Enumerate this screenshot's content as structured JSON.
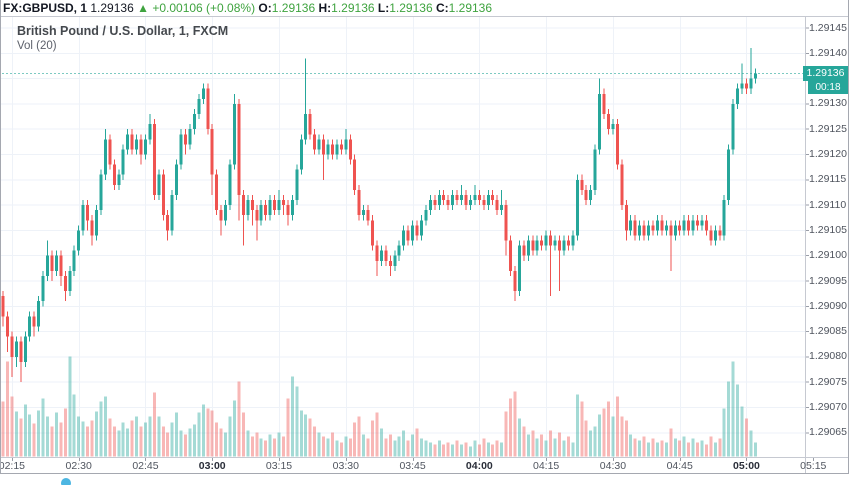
{
  "header": {
    "symbol": "FX:GBPUSD, 1",
    "last_price": "1.29136",
    "arrow": "▲",
    "change": "+0.00106 (+0.08%)",
    "o_label": "O:",
    "o_value": "1.29136",
    "h_label": "H:",
    "h_value": "1.29136",
    "l_label": "L:",
    "l_value": "1.29136",
    "c_label": "C:",
    "c_value": "1.29136"
  },
  "legend": {
    "title": "British Pound / U.S. Dollar, 1, FXCM",
    "indicator": "Vol (20)"
  },
  "price_axis": {
    "labels": [
      "1.29145",
      "1.29140",
      "1.29130",
      "1.29125",
      "1.29120",
      "1.29115",
      "1.29110",
      "1.29105",
      "1.29100",
      "1.29095",
      "1.29090",
      "1.29085",
      "1.29080",
      "1.29075",
      "1.29070",
      "1.29065"
    ],
    "badge_price": "1.29136",
    "countdown": "00:18"
  },
  "time_axis": {
    "labels": [
      {
        "text": "02:15",
        "m": 2,
        "bold": false
      },
      {
        "text": "02:30",
        "m": 17,
        "bold": false
      },
      {
        "text": "02:45",
        "m": 32,
        "bold": false
      },
      {
        "text": "03:00",
        "m": 47,
        "bold": true
      },
      {
        "text": "03:15",
        "m": 62,
        "bold": false
      },
      {
        "text": "03:30",
        "m": 77,
        "bold": false
      },
      {
        "text": "03:45",
        "m": 92,
        "bold": false
      },
      {
        "text": "04:00",
        "m": 107,
        "bold": true
      },
      {
        "text": "04:15",
        "m": 122,
        "bold": false
      },
      {
        "text": "04:30",
        "m": 137,
        "bold": false
      },
      {
        "text": "04:45",
        "m": 152,
        "bold": false
      },
      {
        "text": "05:00",
        "m": 167,
        "bold": true
      },
      {
        "text": "05:15",
        "m": 182,
        "bold": false
      }
    ]
  },
  "colors": {
    "up": "#26a69a",
    "down": "#ef5350",
    "up_volume": "rgba(38,166,154,0.42)",
    "down_volume": "rgba(239,83,80,0.42)",
    "green_text": "#3fa33f",
    "badge_bg": "#26a69a",
    "grid": "#eef2f8",
    "frame": "#c6c9d1",
    "dot_blue": "#4db6e2",
    "dashed_price_line": "rgba(38,166,154,0.6)"
  },
  "chart_data": {
    "type": "candlestick",
    "title": "British Pound / U.S. Dollar, 1, FXCM",
    "symbol": "GBPUSD",
    "interval_minutes": 1,
    "exchange": "FXCM",
    "indicator": "Vol (20)",
    "start_time": "02:13",
    "end_time": "05:02",
    "price_axis_range": [
      1.29062,
      1.29148
    ],
    "grid": true,
    "legend_position": "top-left",
    "current_price": 1.29136,
    "price_base": 1.29,
    "price_scale": 1e-05,
    "candle_format": [
      "open",
      "high",
      "low",
      "close",
      "volume_rel"
    ],
    "candles": [
      [
        92,
        93,
        86,
        88,
        55
      ],
      [
        88,
        89,
        81,
        84,
        95
      ],
      [
        84,
        85,
        76,
        80,
        60
      ],
      [
        80,
        84,
        78,
        83,
        45
      ],
      [
        83,
        84,
        75,
        79,
        38
      ],
      [
        79,
        85,
        78,
        84,
        52
      ],
      [
        84,
        89,
        83,
        88,
        42
      ],
      [
        88,
        89,
        84,
        86,
        33
      ],
      [
        86,
        92,
        85,
        91,
        46
      ],
      [
        91,
        97,
        90,
        96,
        58
      ],
      [
        96,
        103,
        95,
        100,
        40
      ],
      [
        100,
        101,
        95,
        97,
        30
      ],
      [
        97,
        101,
        96,
        100,
        44
      ],
      [
        100,
        101,
        94,
        96,
        34
      ],
      [
        96,
        97,
        91,
        93,
        48
      ],
      [
        93,
        98,
        92,
        97,
        100
      ],
      [
        97,
        102,
        96,
        101,
        62
      ],
      [
        101,
        106,
        100,
        105,
        40
      ],
      [
        105,
        111,
        104,
        110,
        35
      ],
      [
        110,
        111,
        105,
        107,
        30
      ],
      [
        107,
        108,
        102,
        104,
        36
      ],
      [
        104,
        110,
        103,
        109,
        45
      ],
      [
        109,
        117,
        108,
        116,
        55
      ],
      [
        116,
        125,
        115,
        123,
        60
      ],
      [
        123,
        124,
        117,
        118,
        38
      ],
      [
        118,
        119,
        113,
        114,
        30
      ],
      [
        114,
        117,
        113,
        116,
        26
      ],
      [
        116,
        122,
        115,
        121,
        34
      ],
      [
        121,
        125,
        120,
        124,
        28
      ],
      [
        124,
        125,
        120,
        121,
        36
      ],
      [
        121,
        124,
        120,
        123,
        40
      ],
      [
        123,
        124,
        118,
        120,
        30
      ],
      [
        120,
        124,
        119,
        123,
        34
      ],
      [
        123,
        128,
        122,
        126,
        40
      ],
      [
        126,
        127,
        111,
        112,
        64
      ],
      [
        112,
        117,
        111,
        116,
        40
      ],
      [
        116,
        117,
        107,
        108,
        30
      ],
      [
        108,
        109,
        103,
        105,
        24
      ],
      [
        105,
        113,
        104,
        112,
        34
      ],
      [
        112,
        119,
        111,
        118,
        44
      ],
      [
        118,
        125,
        117,
        124,
        26
      ],
      [
        124,
        125,
        120,
        122,
        22
      ],
      [
        122,
        126,
        121,
        125,
        28
      ],
      [
        125,
        129,
        124,
        128,
        32
      ],
      [
        128,
        132,
        127,
        131,
        44
      ],
      [
        131,
        134,
        130,
        133,
        52
      ],
      [
        133,
        134,
        124,
        125,
        48
      ],
      [
        125,
        126,
        112,
        116,
        46
      ],
      [
        116,
        117,
        108,
        109,
        34
      ],
      [
        109,
        110,
        104,
        107,
        28
      ],
      [
        107,
        111,
        106,
        110,
        24
      ],
      [
        110,
        119,
        109,
        118,
        40
      ],
      [
        118,
        132,
        117,
        130,
        56
      ],
      [
        130,
        131,
        107,
        112,
        75
      ],
      [
        112,
        113,
        102,
        108,
        44
      ],
      [
        108,
        112,
        107,
        111,
        26
      ],
      [
        111,
        112,
        106,
        109,
        20
      ],
      [
        109,
        110,
        103,
        107,
        24
      ],
      [
        107,
        111,
        106,
        110,
        18
      ],
      [
        110,
        111,
        107,
        108,
        16
      ],
      [
        108,
        112,
        107,
        111,
        22
      ],
      [
        111,
        112,
        108,
        109,
        18
      ],
      [
        109,
        113,
        108,
        111,
        24
      ],
      [
        111,
        112,
        108,
        110,
        20
      ],
      [
        110,
        111,
        106,
        108,
        58
      ],
      [
        108,
        112,
        107,
        111,
        80
      ],
      [
        111,
        118,
        110,
        117,
        70
      ],
      [
        117,
        124,
        116,
        123,
        46
      ],
      [
        123,
        139,
        122,
        128,
        42
      ],
      [
        128,
        129,
        123,
        124,
        38
      ],
      [
        124,
        125,
        120,
        121,
        30
      ],
      [
        121,
        124,
        120,
        123,
        24
      ],
      [
        123,
        124,
        115,
        120,
        20
      ],
      [
        120,
        123,
        119,
        122,
        18
      ],
      [
        122,
        123,
        119,
        120,
        24
      ],
      [
        120,
        123,
        119,
        122,
        16
      ],
      [
        122,
        123,
        120,
        121,
        14
      ],
      [
        121,
        125,
        120,
        123,
        20
      ],
      [
        123,
        124,
        118,
        119,
        18
      ],
      [
        119,
        120,
        112,
        113,
        34
      ],
      [
        113,
        114,
        107,
        108,
        40
      ],
      [
        108,
        110,
        107,
        109,
        22
      ],
      [
        109,
        110,
        106,
        107,
        18
      ],
      [
        107,
        108,
        101,
        102,
        36
      ],
      [
        102,
        103,
        96,
        99,
        44
      ],
      [
        99,
        102,
        98,
        101,
        28
      ],
      [
        101,
        102,
        98,
        99,
        18
      ],
      [
        99,
        100,
        96,
        98,
        22
      ],
      [
        98,
        101,
        97,
        100,
        16
      ],
      [
        100,
        103,
        99,
        102,
        20
      ],
      [
        102,
        106,
        101,
        105,
        26
      ],
      [
        105,
        106,
        102,
        103,
        16
      ],
      [
        103,
        107,
        102,
        106,
        22
      ],
      [
        106,
        107,
        103,
        104,
        28
      ],
      [
        104,
        108,
        103,
        107,
        18
      ],
      [
        107,
        110,
        106,
        109,
        16
      ],
      [
        109,
        112,
        108,
        111,
        14
      ],
      [
        111,
        112,
        109,
        110,
        12
      ],
      [
        110,
        113,
        109,
        112,
        16
      ],
      [
        112,
        113,
        110,
        111,
        12
      ],
      [
        111,
        112,
        109,
        110,
        14
      ],
      [
        110,
        113,
        109,
        112,
        12
      ],
      [
        112,
        113,
        110,
        111,
        16
      ],
      [
        111,
        114,
        110,
        112,
        12
      ],
      [
        112,
        113,
        109,
        110,
        14
      ],
      [
        110,
        112,
        109,
        111,
        10
      ],
      [
        111,
        114,
        110,
        112,
        16
      ],
      [
        112,
        113,
        110,
        111,
        12
      ],
      [
        111,
        112,
        109,
        110,
        18
      ],
      [
        110,
        113,
        109,
        112,
        14
      ],
      [
        112,
        113,
        110,
        111,
        12
      ],
      [
        111,
        112,
        108,
        109,
        16
      ],
      [
        109,
        113,
        108,
        110,
        14
      ],
      [
        110,
        111,
        100,
        103,
        45
      ],
      [
        103,
        104,
        96,
        97,
        58
      ],
      [
        97,
        98,
        91,
        93,
        65
      ],
      [
        93,
        103,
        92,
        102,
        38
      ],
      [
        102,
        103,
        99,
        100,
        30
      ],
      [
        100,
        104,
        99,
        103,
        22
      ],
      [
        103,
        104,
        100,
        101,
        26
      ],
      [
        101,
        104,
        100,
        103,
        18
      ],
      [
        103,
        104,
        101,
        102,
        22
      ],
      [
        102,
        105,
        101,
        104,
        16
      ],
      [
        104,
        105,
        92,
        102,
        26
      ],
      [
        102,
        104,
        101,
        103,
        18
      ],
      [
        103,
        104,
        93,
        101,
        24
      ],
      [
        101,
        104,
        100,
        103,
        16
      ],
      [
        103,
        104,
        101,
        102,
        20
      ],
      [
        102,
        105,
        101,
        104,
        14
      ],
      [
        104,
        116,
        103,
        115,
        62
      ],
      [
        115,
        116,
        112,
        113,
        55
      ],
      [
        113,
        114,
        110,
        111,
        36
      ],
      [
        111,
        114,
        110,
        113,
        26
      ],
      [
        113,
        122,
        112,
        121,
        30
      ],
      [
        121,
        135,
        120,
        132,
        42
      ],
      [
        132,
        133,
        127,
        128,
        48
      ],
      [
        128,
        129,
        124,
        125,
        55
      ],
      [
        125,
        127,
        124,
        126,
        40
      ],
      [
        126,
        127,
        117,
        118,
        60
      ],
      [
        118,
        119,
        109,
        110,
        40
      ],
      [
        110,
        111,
        103,
        105,
        36
      ],
      [
        105,
        108,
        104,
        107,
        22
      ],
      [
        107,
        108,
        103,
        104,
        18
      ],
      [
        104,
        107,
        103,
        106,
        16
      ],
      [
        106,
        107,
        103,
        104,
        20
      ],
      [
        104,
        107,
        103,
        106,
        14
      ],
      [
        106,
        107,
        104,
        105,
        18
      ],
      [
        105,
        108,
        104,
        107,
        14
      ],
      [
        107,
        108,
        104,
        105,
        16
      ],
      [
        105,
        107,
        104,
        106,
        14
      ],
      [
        106,
        107,
        97,
        104,
        28
      ],
      [
        104,
        107,
        103,
        106,
        18
      ],
      [
        106,
        107,
        104,
        105,
        16
      ],
      [
        105,
        108,
        104,
        107,
        20
      ],
      [
        107,
        108,
        104,
        105,
        14
      ],
      [
        105,
        108,
        104,
        107,
        18
      ],
      [
        107,
        108,
        105,
        106,
        14
      ],
      [
        106,
        108,
        105,
        107,
        16
      ],
      [
        107,
        108,
        104,
        105,
        12
      ],
      [
        105,
        106,
        102,
        103,
        20
      ],
      [
        103,
        106,
        102,
        105,
        14
      ],
      [
        105,
        106,
        103,
        104,
        18
      ],
      [
        104,
        112,
        103,
        111,
        48
      ],
      [
        111,
        122,
        110,
        121,
        75
      ],
      [
        121,
        131,
        120,
        130,
        95
      ],
      [
        130,
        134,
        129,
        133,
        72
      ],
      [
        133,
        138,
        132,
        134,
        50
      ],
      [
        134,
        135,
        132,
        133,
        38
      ],
      [
        133,
        141,
        132,
        135,
        26
      ],
      [
        135,
        137,
        134,
        136,
        14
      ]
    ]
  }
}
